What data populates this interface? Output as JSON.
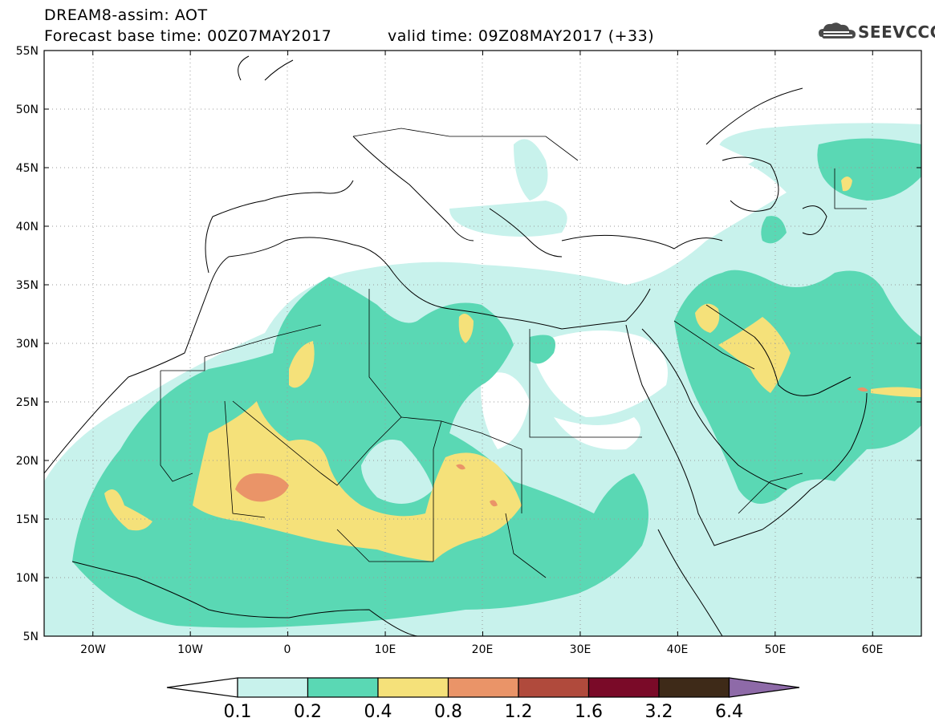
{
  "header": {
    "title": "DREAM8-assim: AOT",
    "base_time": "Forecast base time: 00Z07MAY2017",
    "valid_time": "valid time: 09Z08MAY2017 (+33)",
    "logo_text": "SEEVCCC",
    "logo_icon": "cloud-icon"
  },
  "map": {
    "lon_range": [
      -25,
      65
    ],
    "lat_range": [
      5,
      55
    ],
    "lat_labels": [
      "55N",
      "50N",
      "45N",
      "40N",
      "35N",
      "30N",
      "25N",
      "20N",
      "15N",
      "10N",
      "5N"
    ],
    "lat_values": [
      55,
      50,
      45,
      40,
      35,
      30,
      25,
      20,
      15,
      10,
      5
    ],
    "lon_labels": [
      "20W",
      "10W",
      "0",
      "10E",
      "20E",
      "30E",
      "40E",
      "50E",
      "60E"
    ],
    "lon_values": [
      -20,
      -10,
      0,
      10,
      20,
      30,
      40,
      50,
      60
    ],
    "grid": true
  },
  "colorbar": {
    "levels": [
      "0.1",
      "0.2",
      "0.4",
      "0.8",
      "1.2",
      "1.6",
      "3.2",
      "6.4"
    ],
    "colors": [
      "#ffffff",
      "#c8f2ec",
      "#5ad8b4",
      "#f5e17a",
      "#ea9468",
      "#b04a3c",
      "#7a0a28",
      "#3e2a18",
      "#8e6aa8"
    ]
  }
}
